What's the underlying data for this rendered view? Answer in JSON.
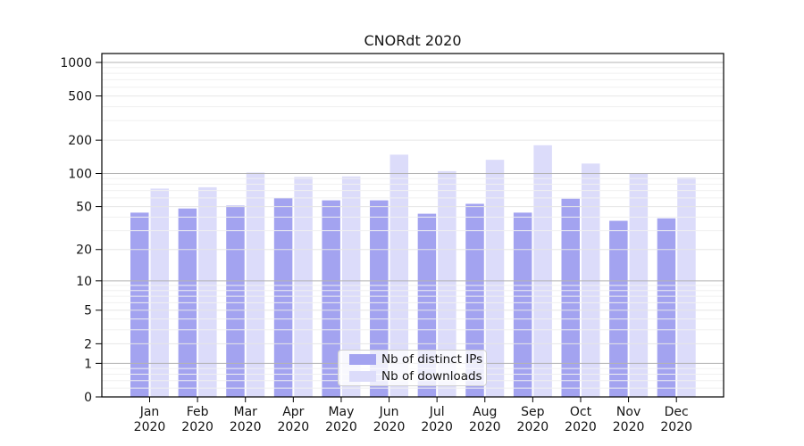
{
  "title": "CNORdt 2020",
  "chart_data": {
    "type": "bar",
    "title": "CNORdt 2020",
    "categories": [
      "Jan 2020",
      "Feb 2020",
      "Mar 2020",
      "Apr 2020",
      "May 2020",
      "Jun 2020",
      "Jul 2020",
      "Aug 2020",
      "Sep 2020",
      "Oct 2020",
      "Nov 2020",
      "Dec 2020"
    ],
    "series": [
      {
        "name": "Nb of distinct IPs",
        "color": "#a3a3f0",
        "values": [
          44,
          48,
          51,
          60,
          57,
          57,
          43,
          53,
          44,
          59,
          37,
          39
        ]
      },
      {
        "name": "Nb of downloads",
        "color": "#dcdcfa",
        "values": [
          73,
          75,
          102,
          93,
          94,
          148,
          105,
          133,
          180,
          123,
          100,
          92
        ]
      }
    ],
    "yscale": "symlog",
    "yticks": [
      0,
      1,
      2,
      5,
      10,
      20,
      50,
      100,
      200,
      500,
      1000
    ],
    "ylim": [
      0,
      1200
    ],
    "xlabel": "",
    "ylabel": "",
    "grid": true,
    "legend_position": "inside-bottom-center",
    "colors": {
      "background": "#ffffff",
      "axis_frame": "#000000",
      "major_grid_pow10": "#b3b3b3",
      "major_grid_other": "#e6e6e6",
      "minor_grid": "#f0f0f0",
      "text": "#141414"
    }
  }
}
